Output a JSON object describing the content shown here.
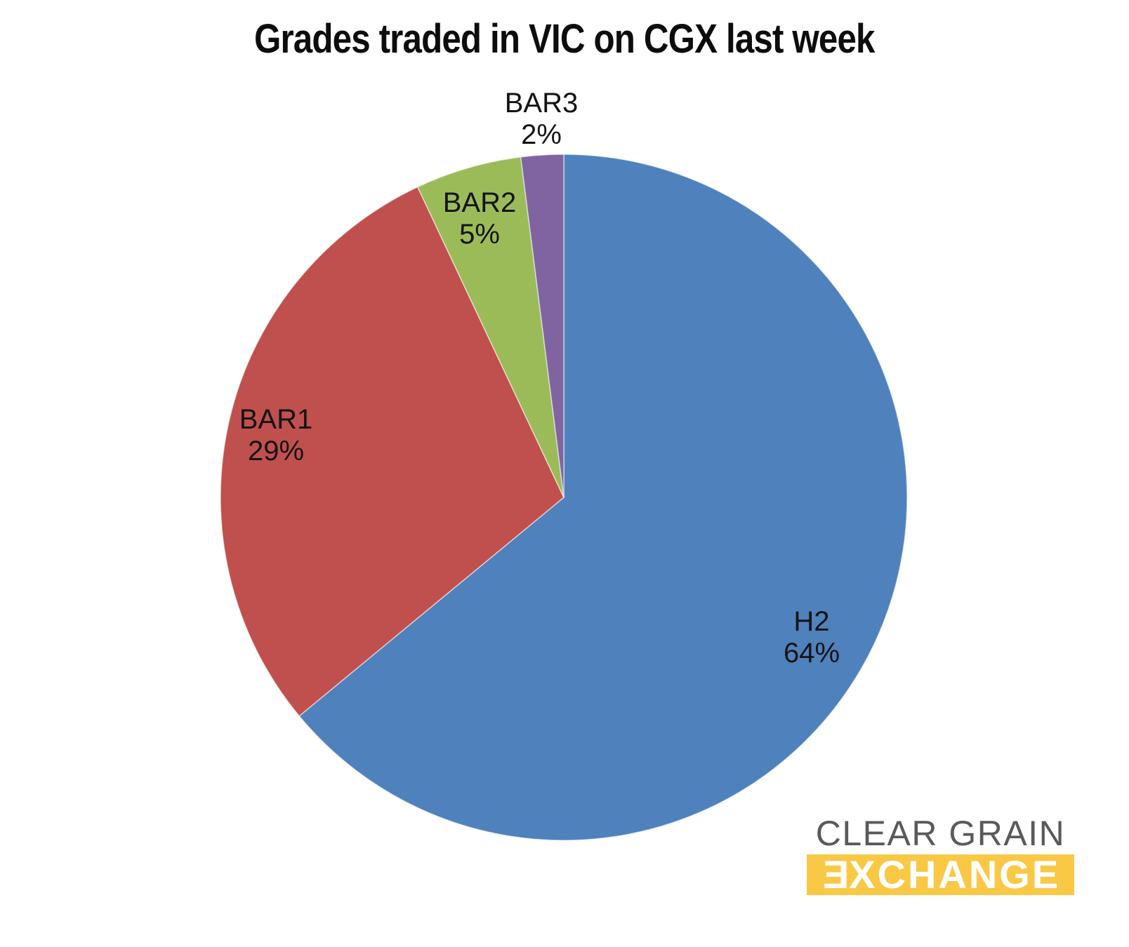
{
  "page": {
    "background": "#FFFFFF"
  },
  "title": "Grades traded in VIC on CGX last week",
  "chart_data": {
    "type": "pie",
    "title": "Grades traded in VIC on CGX last week",
    "unit": "percent",
    "start_angle_deg": 0,
    "direction": "clockwise",
    "legend": "none",
    "total": 100,
    "slices": [
      {
        "label": "H2",
        "value": 64,
        "pct_label": "64%",
        "color": "#4F81BD",
        "label_placement": "inside"
      },
      {
        "label": "BAR1",
        "value": 29,
        "pct_label": "29%",
        "color": "#C0504D",
        "label_placement": "inside"
      },
      {
        "label": "BAR2",
        "value": 5,
        "pct_label": "5%",
        "color": "#9BBB59",
        "label_placement": "inside"
      },
      {
        "label": "BAR3",
        "value": 2,
        "pct_label": "2%",
        "color": "#8064A2",
        "label_placement": "outside"
      }
    ]
  },
  "logo": {
    "line1": "CLEAR GRAIN",
    "line2_first": "E",
    "line2_rest": "XCHANGE",
    "bar_color": "#F9C945",
    "line1_color": "#595A5C",
    "text_color": "#FFFFFF"
  }
}
